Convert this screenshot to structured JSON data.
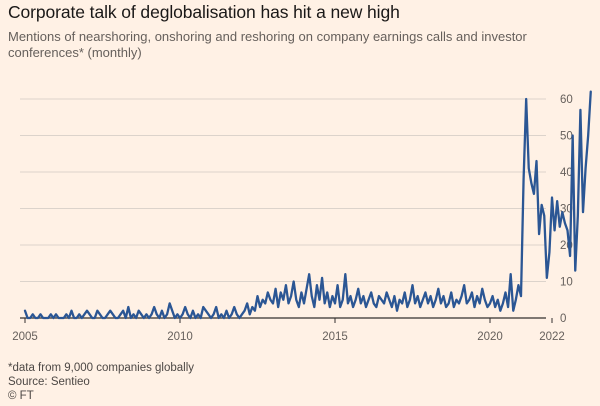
{
  "header": {
    "title": "Corporate talk of deglobalisation has hit a new high",
    "subtitle": "Mentions of nearshoring, onshoring and reshoring on company earnings calls and investor conferences* (monthly)"
  },
  "footer": {
    "note": "*data from 9,000 companies globally",
    "source": "Source: Sentieo",
    "credit": "© FT"
  },
  "colors": {
    "line": "#2b5694",
    "grid": "#dcd3cb",
    "axis": "#33302e",
    "background": "#fff1e5"
  },
  "chart_data": {
    "type": "line",
    "x_axis": {
      "start": "2005-01",
      "end": "2022-06",
      "ticks": [
        "2005",
        "2010",
        "2015",
        "2020",
        "2022"
      ]
    },
    "y_axis": {
      "ylim": [
        0,
        65
      ],
      "ticks": [
        0,
        10,
        20,
        30,
        40,
        50,
        60
      ],
      "position": "right",
      "grid": true
    },
    "series": [
      {
        "values": [
          2,
          0,
          0,
          1,
          0,
          0,
          1,
          0,
          0,
          0,
          1,
          0,
          1,
          0,
          0,
          0,
          1,
          0,
          2,
          0,
          0,
          1,
          0,
          1,
          2,
          1,
          0,
          0,
          2,
          1,
          0,
          0,
          1,
          2,
          1,
          0,
          0,
          1,
          2,
          0,
          3,
          0,
          1,
          0,
          2,
          1,
          0,
          1,
          0,
          1,
          3,
          1,
          0,
          2,
          0,
          1,
          4,
          2,
          0,
          1,
          0,
          1,
          3,
          1,
          0,
          2,
          0,
          1,
          0,
          3,
          2,
          1,
          0,
          1,
          3,
          0,
          1,
          0,
          2,
          0,
          1,
          3,
          1,
          0,
          1,
          2,
          4,
          1,
          3,
          2,
          6,
          3,
          5,
          4,
          7,
          5,
          4,
          8,
          3,
          7,
          5,
          9,
          4,
          6,
          10,
          5,
          3,
          7,
          4,
          8,
          12,
          6,
          3,
          9,
          5,
          11,
          4,
          7,
          3,
          6,
          4,
          9,
          3,
          5,
          12,
          4,
          6,
          3,
          5,
          8,
          4,
          6,
          3,
          5,
          7,
          4,
          3,
          6,
          5,
          4,
          7,
          5,
          3,
          6,
          2,
          5,
          4,
          7,
          3,
          5,
          9,
          4,
          6,
          3,
          5,
          7,
          4,
          6,
          3,
          5,
          8,
          4,
          6,
          3,
          4,
          7,
          3,
          5,
          4,
          6,
          9,
          4,
          5,
          7,
          3,
          6,
          4,
          8,
          5,
          3,
          4,
          6,
          3,
          5,
          2,
          4,
          7,
          3,
          12,
          2,
          5,
          9,
          6,
          38,
          60,
          41,
          37,
          34,
          43,
          23,
          31,
          28,
          11,
          18,
          33,
          24,
          32,
          25,
          29,
          26,
          24,
          17,
          50,
          13,
          28,
          57,
          29,
          41,
          50,
          62
        ]
      }
    ]
  }
}
